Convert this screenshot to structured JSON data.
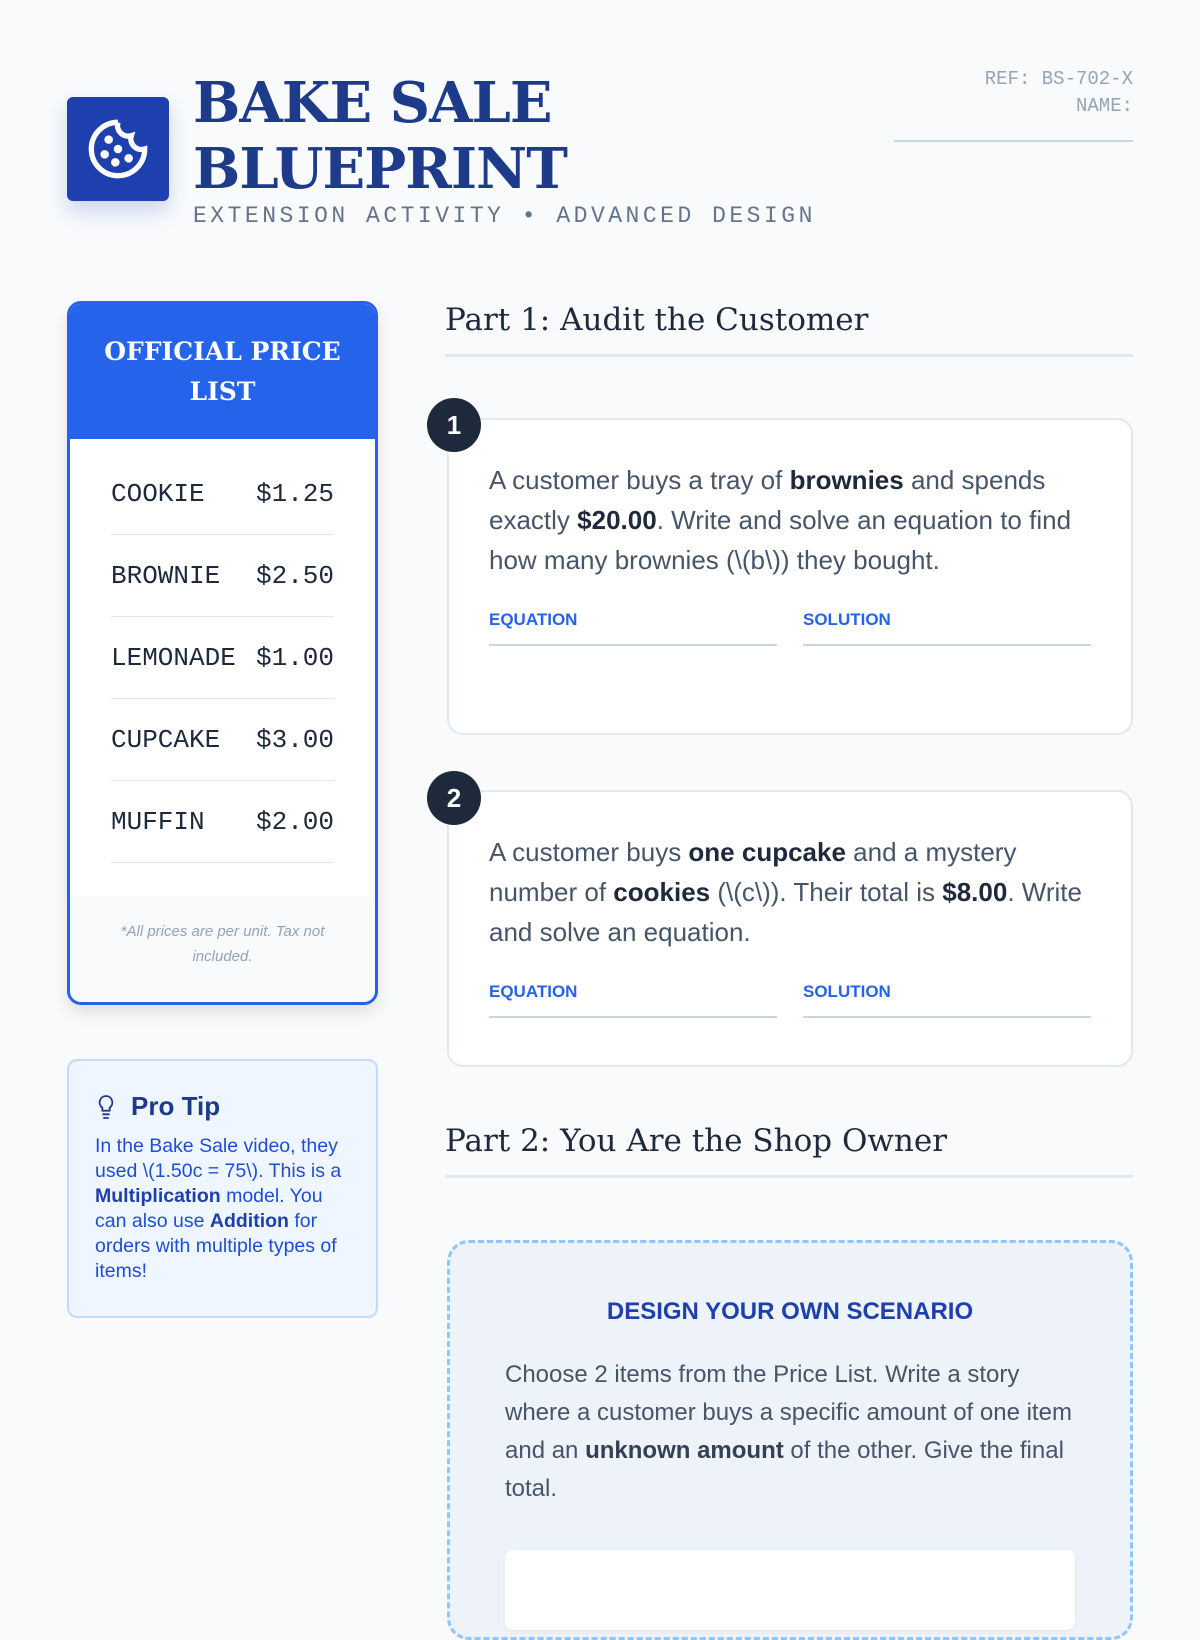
{
  "header": {
    "title_line1": "BAKE SALE",
    "title_line2": "BLUEPRINT",
    "subtitle": "EXTENSION ACTIVITY • ADVANCED DESIGN",
    "ref": "REF: BS-702-X",
    "name_label": "NAME:",
    "logo_icon": "cookie-icon"
  },
  "price_list": {
    "title": "OFFICIAL PRICE LIST",
    "items": [
      {
        "name": "COOKIE",
        "price": "$1.25"
      },
      {
        "name": "BROWNIE",
        "price": "$2.50"
      },
      {
        "name": "LEMONADE",
        "price": "$1.00"
      },
      {
        "name": "CUPCAKE",
        "price": "$3.00"
      },
      {
        "name": "MUFFIN",
        "price": "$2.00"
      }
    ],
    "footnote": "*All prices are per unit. Tax not included."
  },
  "tip": {
    "icon": "lightbulb-icon",
    "title": "Pro Tip",
    "t1": "In the Bake Sale video, they used \\(1.50c = 75\\). This is a ",
    "b1": "Multiplication",
    "t2": " model. You can also use ",
    "b2": "Addition",
    "t3": " for orders with multiple types of items!"
  },
  "part1": {
    "heading": "Part 1: Audit the Customer",
    "questions": [
      {
        "number": "1",
        "t1": "A customer buys a tray of ",
        "b1": "brownies",
        "t2": " and spends exactly ",
        "b2": "$20.00",
        "t3": ". Write and solve an equation to find how many brownies (\\(b\\)) they bought.",
        "equation_label": "EQUATION",
        "solution_label": "SOLUTION"
      },
      {
        "number": "2",
        "t1": "A customer buys ",
        "b1": "one cupcake",
        "t2": " and a mystery number of ",
        "b2": "cookies",
        "t3": " (\\(c\\)). Their total is ",
        "b3": "$8.00",
        "t4": ". Write and solve an equation.",
        "equation_label": "EQUATION",
        "solution_label": "SOLUTION"
      }
    ]
  },
  "part2": {
    "heading": "Part 2: You Are the Shop Owner",
    "design_title": "DESIGN YOUR OWN SCENARIO",
    "t1": "Choose 2 items from the Price List. Write a story where a customer buys a specific amount of one item and an ",
    "b1": "unknown amount",
    "t2": " of the other. Give the final total."
  },
  "colors": {
    "primary": "#2563eb",
    "navy": "#1e3a8a",
    "background": "#f8fafc"
  }
}
